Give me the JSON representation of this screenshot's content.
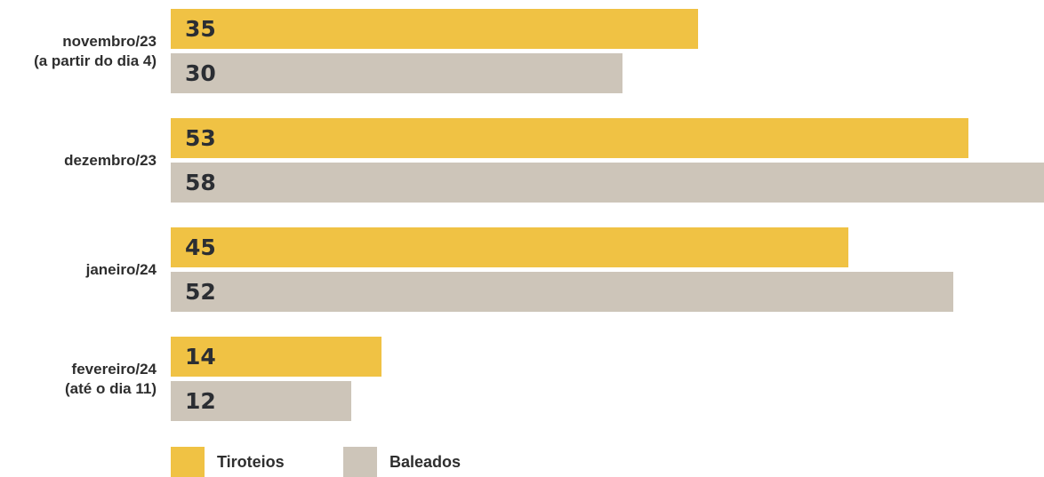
{
  "chart_data": {
    "type": "bar",
    "orientation": "horizontal",
    "categories": [
      [
        "novembro/23",
        "(a partir do dia 4)"
      ],
      [
        "dezembro/23"
      ],
      [
        "janeiro/24"
      ],
      [
        "fevereiro/24",
        "(até o dia 11)"
      ]
    ],
    "series": [
      {
        "name": "Tiroteios",
        "color": "#f0c244",
        "values": [
          35,
          53,
          45,
          14
        ]
      },
      {
        "name": "Baleados",
        "color": "#cdc5b9",
        "values": [
          30,
          58,
          52,
          12
        ]
      }
    ],
    "xlim": [
      0,
      58
    ],
    "grid": false,
    "legend_position": "bottom-left"
  }
}
